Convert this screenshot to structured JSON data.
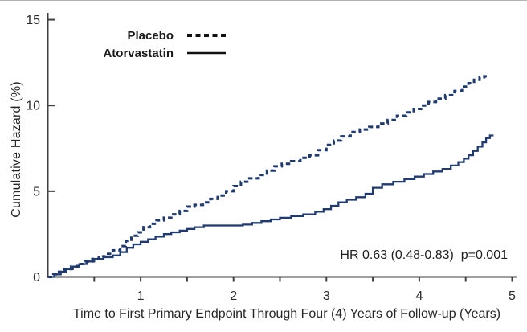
{
  "chart_data": {
    "type": "line",
    "subtype": "step",
    "title": "",
    "xlabel": "Time to First Primary Endpoint Through Four (4) Years of Follow-up (Years)",
    "ylabel": "Cumulative Hazard (%)",
    "xlim": [
      0,
      5
    ],
    "ylim": [
      0,
      15
    ],
    "xticks_major": [
      1,
      2,
      3,
      4,
      5
    ],
    "xtick_labels": [
      "1",
      "2",
      "3",
      "4",
      "5"
    ],
    "xticks_minor": [
      0.5,
      1.5,
      2.5,
      3.5,
      4.5
    ],
    "yticks": [
      0,
      5,
      10,
      15
    ],
    "ytick_labels": [
      "0",
      "5",
      "10",
      "15"
    ],
    "grid": false,
    "legend_position": "top-center",
    "annotation": "HR 0.63 (0.48-0.83)  p=0.001",
    "colors": {
      "curve": "#1f3a70",
      "axis": "#3f3f3f",
      "tick_label": "#2b2b2b",
      "legend_marker": "#111111"
    },
    "series": [
      {
        "name": "Placebo",
        "style": "dashed",
        "final_value_pct": 11.7,
        "points": [
          [
            0,
            0
          ],
          [
            0.06,
            0.15
          ],
          [
            0.12,
            0.3
          ],
          [
            0.18,
            0.45
          ],
          [
            0.25,
            0.6
          ],
          [
            0.32,
            0.75
          ],
          [
            0.4,
            0.9
          ],
          [
            0.48,
            1.05
          ],
          [
            0.55,
            1.2
          ],
          [
            0.62,
            1.35
          ],
          [
            0.7,
            1.55
          ],
          [
            0.78,
            1.8
          ],
          [
            0.84,
            2.1
          ],
          [
            0.9,
            2.4
          ],
          [
            0.97,
            2.6
          ],
          [
            1.03,
            2.9
          ],
          [
            1.1,
            3.1
          ],
          [
            1.17,
            3.3
          ],
          [
            1.25,
            3.45
          ],
          [
            1.33,
            3.65
          ],
          [
            1.42,
            3.85
          ],
          [
            1.5,
            4.1
          ],
          [
            1.58,
            4.2
          ],
          [
            1.67,
            4.35
          ],
          [
            1.75,
            4.55
          ],
          [
            1.83,
            4.75
          ],
          [
            1.92,
            5.0
          ],
          [
            2.0,
            5.3
          ],
          [
            2.08,
            5.55
          ],
          [
            2.17,
            5.75
          ],
          [
            2.27,
            5.95
          ],
          [
            2.36,
            6.2
          ],
          [
            2.44,
            6.45
          ],
          [
            2.52,
            6.6
          ],
          [
            2.62,
            6.75
          ],
          [
            2.72,
            6.95
          ],
          [
            2.82,
            7.1
          ],
          [
            2.91,
            7.4
          ],
          [
            3.0,
            7.7
          ],
          [
            3.08,
            7.95
          ],
          [
            3.16,
            8.2
          ],
          [
            3.26,
            8.45
          ],
          [
            3.36,
            8.6
          ],
          [
            3.46,
            8.75
          ],
          [
            3.56,
            8.95
          ],
          [
            3.66,
            9.15
          ],
          [
            3.76,
            9.4
          ],
          [
            3.86,
            9.6
          ],
          [
            3.94,
            9.8
          ],
          [
            4.02,
            10.0
          ],
          [
            4.1,
            10.2
          ],
          [
            4.18,
            10.4
          ],
          [
            4.28,
            10.6
          ],
          [
            4.38,
            10.85
          ],
          [
            4.46,
            11.1
          ],
          [
            4.53,
            11.3
          ],
          [
            4.59,
            11.5
          ],
          [
            4.65,
            11.65
          ],
          [
            4.7,
            11.7
          ],
          [
            4.74,
            11.7
          ]
        ]
      },
      {
        "name": "Atorvastatin",
        "style": "solid",
        "final_value_pct": 8.25,
        "points": [
          [
            0,
            0
          ],
          [
            0.07,
            0.15
          ],
          [
            0.14,
            0.3
          ],
          [
            0.2,
            0.45
          ],
          [
            0.27,
            0.6
          ],
          [
            0.34,
            0.75
          ],
          [
            0.42,
            0.9
          ],
          [
            0.5,
            1.05
          ],
          [
            0.6,
            1.15
          ],
          [
            0.7,
            1.25
          ],
          [
            0.78,
            1.45
          ],
          [
            0.85,
            1.7
          ],
          [
            0.92,
            1.9
          ],
          [
            1.0,
            2.05
          ],
          [
            1.08,
            2.2
          ],
          [
            1.16,
            2.35
          ],
          [
            1.25,
            2.5
          ],
          [
            1.33,
            2.6
          ],
          [
            1.42,
            2.7
          ],
          [
            1.5,
            2.8
          ],
          [
            1.58,
            2.9
          ],
          [
            1.68,
            3.0
          ],
          [
            2.1,
            3.05
          ],
          [
            2.2,
            3.15
          ],
          [
            2.3,
            3.25
          ],
          [
            2.4,
            3.35
          ],
          [
            2.5,
            3.45
          ],
          [
            2.62,
            3.55
          ],
          [
            2.75,
            3.65
          ],
          [
            2.88,
            3.8
          ],
          [
            2.97,
            3.95
          ],
          [
            3.05,
            4.15
          ],
          [
            3.13,
            4.35
          ],
          [
            3.22,
            4.5
          ],
          [
            3.32,
            4.65
          ],
          [
            3.42,
            4.85
          ],
          [
            3.5,
            5.2
          ],
          [
            3.6,
            5.4
          ],
          [
            3.72,
            5.55
          ],
          [
            3.84,
            5.7
          ],
          [
            3.95,
            5.85
          ],
          [
            4.05,
            6.0
          ],
          [
            4.15,
            6.15
          ],
          [
            4.25,
            6.3
          ],
          [
            4.34,
            6.5
          ],
          [
            4.42,
            6.7
          ],
          [
            4.48,
            6.9
          ],
          [
            4.53,
            7.1
          ],
          [
            4.58,
            7.35
          ],
          [
            4.63,
            7.6
          ],
          [
            4.68,
            7.85
          ],
          [
            4.72,
            8.1
          ],
          [
            4.76,
            8.25
          ],
          [
            4.8,
            8.25
          ]
        ]
      }
    ]
  }
}
